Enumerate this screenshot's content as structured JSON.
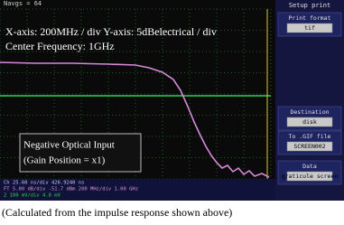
{
  "header": {
    "status": "Navgs = 64"
  },
  "overlay": {
    "lines": [
      "X-axis: 200MHz / div Y-axis: 5dBelectrical / div",
      "Center Frequency: 1GHz"
    ]
  },
  "input_box": {
    "lines": [
      "Negative Optical Input",
      "(Gain Position = x1)"
    ]
  },
  "status_bar": {
    "lines": [
      "Ch     25.60 ns/div          426.9240 ns",
      "FT 5.00 dB/div  -51.7 dBm   200 MHz/div  1.00 GHz",
      "2  100 mV/div    4.8 mV"
    ]
  },
  "menu": {
    "title": "Setup print",
    "items": [
      {
        "label": "Print format",
        "value": "tif"
      },
      {
        "label": "Destination",
        "value": "disk"
      },
      {
        "label": "To .GIF file",
        "value": "SCREEN002"
      },
      {
        "label": "Data",
        "value": "graticule  screen"
      }
    ]
  },
  "caption": "(Calculated from the impulse response shown above)"
}
